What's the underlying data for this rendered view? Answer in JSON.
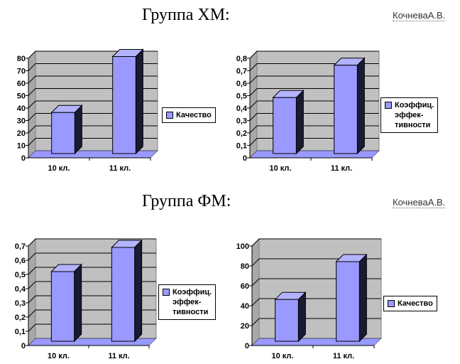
{
  "header": {
    "group1_title": "Группа ХМ:",
    "group2_title": "Группа ФМ:",
    "author1": "КочневаА.В.",
    "author2": "КочневаА.В."
  },
  "colors": {
    "bar_front": "#9999ff",
    "bar_side": "#1a1a33",
    "bar_top": "#b3b3ff",
    "wall": "#c0c0c0",
    "floor": "#9999ff",
    "grid": "#000000"
  },
  "chart_data": [
    {
      "type": "bar",
      "categories": [
        "10 кл.",
        "11 кл."
      ],
      "series": [
        {
          "name": "Качество",
          "values": [
            33,
            78
          ]
        }
      ],
      "ylim": [
        0,
        80
      ],
      "yticks": [
        "0",
        "10",
        "20",
        "30",
        "40",
        "50",
        "60",
        "70",
        "80"
      ],
      "grid": true,
      "legend": "right"
    },
    {
      "type": "bar",
      "categories": [
        "10 кл.",
        "11 кл."
      ],
      "series": [
        {
          "name": "Коэффиц.\nэффек-\nтивности",
          "values": [
            0.45,
            0.71
          ]
        }
      ],
      "ylim": [
        0,
        0.8
      ],
      "yticks": [
        "0",
        "0,1",
        "0,2",
        "0,3",
        "0,4",
        "0,5",
        "0,6",
        "0,7",
        "0,8"
      ],
      "grid": true,
      "legend": "right"
    },
    {
      "type": "bar",
      "categories": [
        "10 кл.",
        "11 кл."
      ],
      "series": [
        {
          "name": "Коэффиц.\nэффек-\nтивности",
          "values": [
            0.49,
            0.66
          ]
        }
      ],
      "ylim": [
        0,
        0.7
      ],
      "yticks": [
        "0",
        "0,1",
        "0,2",
        "0,3",
        "0,4",
        "0,5",
        "0,6",
        "0,7"
      ],
      "grid": true,
      "legend": "right"
    },
    {
      "type": "bar",
      "categories": [
        "10 кл.",
        "11 кл."
      ],
      "series": [
        {
          "name": "Качество",
          "values": [
            42,
            80
          ]
        }
      ],
      "ylim": [
        0,
        100
      ],
      "yticks": [
        "0",
        "20",
        "40",
        "60",
        "80",
        "100"
      ],
      "grid": true,
      "legend": "right"
    }
  ]
}
